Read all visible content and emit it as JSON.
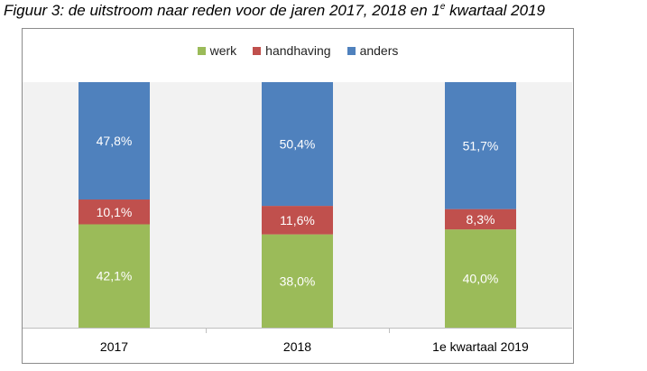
{
  "caption": {
    "main": "Figuur 3: de uitstroom naar reden voor de jaren 2017, 2018 en 1",
    "sup": "e",
    "tail": " kwartaal 2019"
  },
  "chart_data": {
    "type": "bar",
    "stacked": true,
    "title": "",
    "xlabel": "",
    "ylabel": "",
    "ylim": [
      0,
      100
    ],
    "grid": false,
    "legend_position": "top",
    "categories": [
      "2017",
      "2018",
      "1e kwartaal 2019"
    ],
    "series": [
      {
        "name": "werk",
        "color": "#9bbb59",
        "values": [
          42.1,
          38.0,
          40.0
        ],
        "labels": [
          "42,1%",
          "38,0%",
          "40,0%"
        ]
      },
      {
        "name": "handhaving",
        "color": "#c0504d",
        "values": [
          10.1,
          11.6,
          8.3
        ],
        "labels": [
          "10,1%",
          "11,6%",
          "8,3%"
        ]
      },
      {
        "name": "anders",
        "color": "#4f81bd",
        "values": [
          47.8,
          50.4,
          51.7
        ],
        "labels": [
          "47,8%",
          "50,4%",
          "51,7%"
        ]
      }
    ],
    "plot_background": "#f2f2f2"
  }
}
